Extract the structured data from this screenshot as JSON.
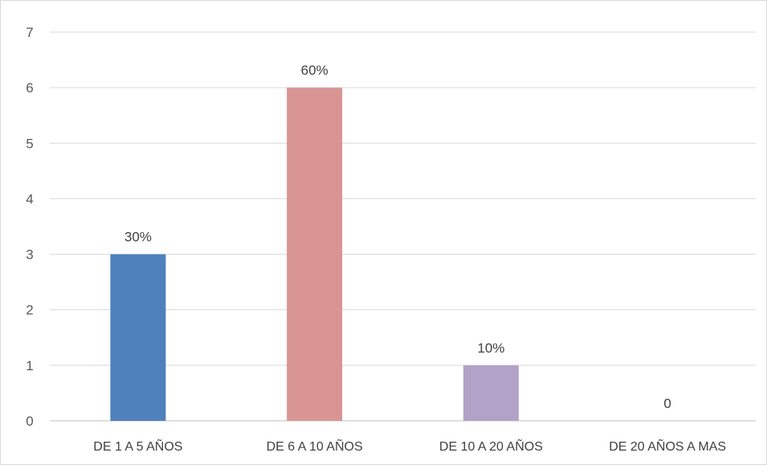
{
  "chart_data": {
    "type": "bar",
    "categories": [
      "DE 1 A 5 AÑOS",
      "DE 6 A 10 AÑOS",
      "DE 10 A 20 AÑOS",
      "DE 20 AÑOS A MAS"
    ],
    "values": [
      3,
      6,
      1,
      0
    ],
    "data_labels": [
      "30%",
      "60%",
      "10%",
      "0"
    ],
    "bar_colors": [
      "#4f81bd",
      "#d99594",
      "#b2a2c7",
      "#9bbb59"
    ],
    "yticks": [
      "0",
      "1",
      "2",
      "3",
      "4",
      "5",
      "6",
      "7"
    ],
    "ylim": [
      0,
      7
    ],
    "grid": true,
    "legend": "none"
  }
}
